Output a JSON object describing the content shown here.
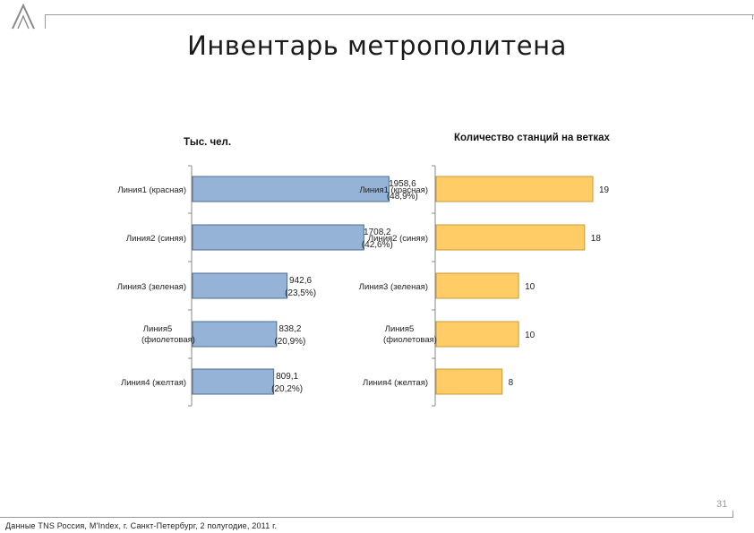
{
  "page": {
    "title": "Инвентарь метрополитена",
    "page_number": "31",
    "footer": "Данные TNS Россия, M'Index, г. Санкт-Петербург, 2 полугодие, 2011 г.",
    "logo_icon": "triangle-a-logo"
  },
  "colors": {
    "left_bar_fill": "#95b3d7",
    "left_bar_stroke": "#4f6d91",
    "right_bar_fill": "#ffcc66",
    "right_bar_stroke": "#c89a3a"
  },
  "chart_data": [
    {
      "type": "bar",
      "orientation": "horizontal",
      "title": "Тыс. чел.",
      "categories": [
        [
          "Линия1 (красная)"
        ],
        [
          "Линия2 (синяя)"
        ],
        [
          "Линия3 (зеленая)"
        ],
        [
          "Линия5",
          "(фиолетовая)"
        ],
        [
          "Линия4 (желтая)"
        ]
      ],
      "series": [
        {
          "values": [
            1958.6,
            1708.2,
            942.6,
            838.2,
            809.1
          ],
          "labels": [
            [
              "1958,6",
              "(48,9%)"
            ],
            [
              "1708,2",
              "(42,6%)"
            ],
            [
              "942,6",
              "(23,5%)"
            ],
            [
              "838,2",
              "(20,9%)"
            ],
            [
              "809,1",
              "(20,2%)"
            ]
          ]
        }
      ],
      "grid": false
    },
    {
      "type": "bar",
      "orientation": "horizontal",
      "title": "Количество станций на ветках",
      "categories": [
        [
          "Линия1 (красная)"
        ],
        [
          "Линия2 (синяя)"
        ],
        [
          "Линия3 (зеленая)"
        ],
        [
          "Линия5",
          "(фиолетовая)"
        ],
        [
          "Линия4 (желтая)"
        ]
      ],
      "series": [
        {
          "values": [
            19,
            18,
            10,
            10,
            8
          ],
          "labels": [
            [
              "19"
            ],
            [
              "18"
            ],
            [
              "10"
            ],
            [
              "10"
            ],
            [
              "8"
            ]
          ]
        }
      ],
      "grid": false
    }
  ]
}
